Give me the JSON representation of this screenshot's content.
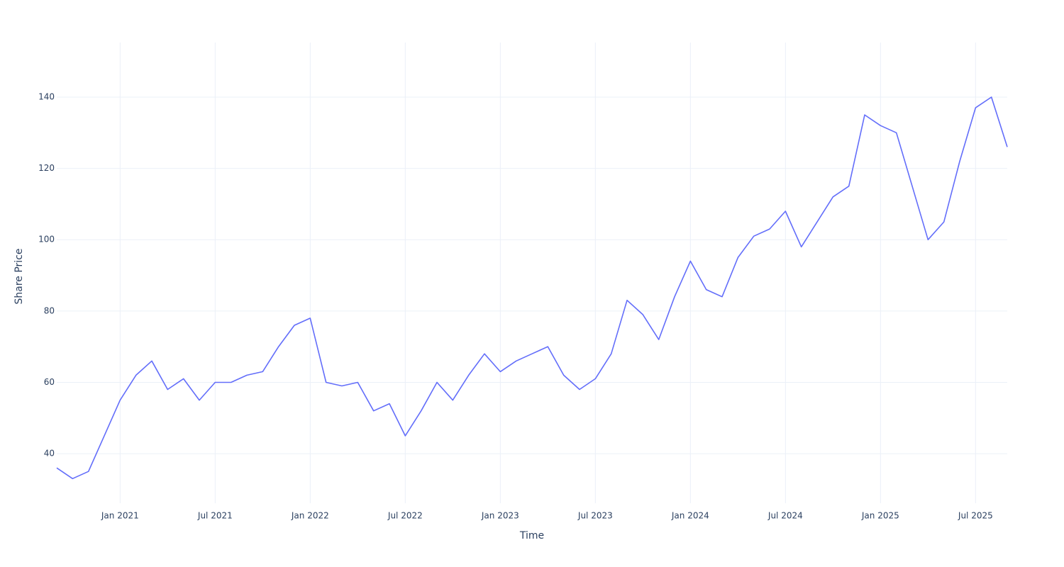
{
  "chart_data": {
    "type": "line",
    "x_label": "Time",
    "y_label": "Share Price",
    "x": [
      "2020-09",
      "2020-10",
      "2020-11",
      "2020-12",
      "2021-01",
      "2021-02",
      "2021-03",
      "2021-04",
      "2021-05",
      "2021-06",
      "2021-07",
      "2021-08",
      "2021-09",
      "2021-10",
      "2021-11",
      "2021-12",
      "2022-01",
      "2022-02",
      "2022-03",
      "2022-04",
      "2022-05",
      "2022-06",
      "2022-07",
      "2022-08",
      "2022-09",
      "2022-10",
      "2022-11",
      "2022-12",
      "2023-01",
      "2023-02",
      "2023-03",
      "2023-04",
      "2023-05",
      "2023-06",
      "2023-07",
      "2023-08",
      "2023-09",
      "2023-10",
      "2023-11",
      "2023-12",
      "2024-01",
      "2024-02",
      "2024-03",
      "2024-04",
      "2024-05",
      "2024-06",
      "2024-07",
      "2024-08",
      "2024-09",
      "2024-10",
      "2024-11",
      "2024-12",
      "2025-01",
      "2025-02",
      "2025-03",
      "2025-04",
      "2025-05",
      "2025-06",
      "2025-07",
      "2025-08",
      "2025-09"
    ],
    "values": [
      36,
      33,
      35,
      45,
      55,
      62,
      66,
      58,
      61,
      55,
      60,
      60,
      62,
      63,
      70,
      76,
      78,
      60,
      59,
      60,
      52,
      54,
      45,
      52,
      60,
      55,
      62,
      68,
      63,
      66,
      68,
      70,
      62,
      58,
      61,
      68,
      83,
      79,
      72,
      84,
      94,
      86,
      84,
      95,
      101,
      103,
      108,
      98,
      105,
      112,
      115,
      135,
      132,
      130,
      115,
      100,
      105,
      122,
      137,
      140,
      126
    ],
    "color": "#636efa",
    "xlim": [
      "2020-09",
      "2025-09"
    ],
    "xticks": [
      {
        "value": "2021-01",
        "label": "Jan 2021"
      },
      {
        "value": "2021-07",
        "label": "Jul 2021"
      },
      {
        "value": "2022-01",
        "label": "Jan 2022"
      },
      {
        "value": "2022-07",
        "label": "Jul 2022"
      },
      {
        "value": "2023-01",
        "label": "Jan 2023"
      },
      {
        "value": "2023-07",
        "label": "Jul 2023"
      },
      {
        "value": "2024-01",
        "label": "Jan 2024"
      },
      {
        "value": "2024-07",
        "label": "Jul 2024"
      },
      {
        "value": "2025-01",
        "label": "Jan 2025"
      },
      {
        "value": "2025-07",
        "label": "Jul 2025"
      }
    ],
    "ylim": [
      26.1,
      155.3
    ],
    "yticks": [
      40,
      60,
      80,
      100,
      120,
      140
    ],
    "grid": true
  }
}
